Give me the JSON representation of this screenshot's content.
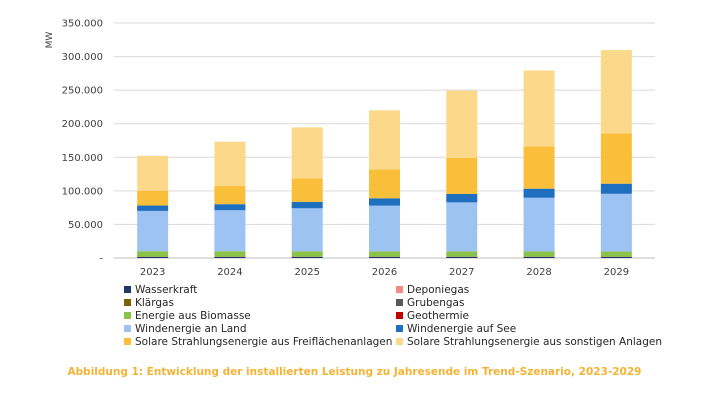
{
  "chart_data": {
    "type": "bar",
    "stacked": true,
    "categories": [
      "2023",
      "2024",
      "2025",
      "2026",
      "2027",
      "2028",
      "2029"
    ],
    "ylabel": "MW",
    "ylim": [
      0,
      350000
    ],
    "yticks": [
      0,
      50000,
      100000,
      150000,
      200000,
      250000,
      300000,
      350000
    ],
    "ytick_labels": [
      "-",
      "50.000",
      "100.000",
      "150.000",
      "200.000",
      "250.000",
      "300.000",
      "350.000"
    ],
    "grid": true,
    "legend_position": "bottom",
    "series": [
      {
        "name": "Wasserkraft",
        "color": "#1F3864",
        "values": [
          1500,
          1500,
          1500,
          1500,
          1500,
          1500,
          1500
        ]
      },
      {
        "name": "Deponiegas",
        "color": "#F28B82",
        "values": [
          200,
          200,
          200,
          200,
          200,
          200,
          200
        ]
      },
      {
        "name": "Klärgas",
        "color": "#7F6000",
        "values": [
          300,
          300,
          300,
          300,
          300,
          300,
          300
        ]
      },
      {
        "name": "Grubengas",
        "color": "#595959",
        "values": [
          100,
          100,
          100,
          100,
          100,
          100,
          100
        ]
      },
      {
        "name": "Energie aus Biomasse",
        "color": "#8BC34A",
        "values": [
          8000,
          8000,
          7900,
          7800,
          7700,
          7600,
          7500
        ]
      },
      {
        "name": "Geothermie",
        "color": "#C00000",
        "values": [
          50,
          50,
          50,
          50,
          50,
          50,
          50
        ]
      },
      {
        "name": "Windenergie an Land",
        "color": "#9DC3F2",
        "values": [
          60000,
          61000,
          64000,
          68000,
          73000,
          80000,
          86000
        ]
      },
      {
        "name": "Windenergie auf See",
        "color": "#1F6FBF",
        "values": [
          8000,
          9000,
          9500,
          11000,
          12500,
          13500,
          15000
        ]
      },
      {
        "name": "Solare Strahlungsenergie aus Freiflächenanlagen",
        "color": "#F9BE3A",
        "values": [
          22000,
          27000,
          35000,
          43000,
          54000,
          63000,
          75000
        ]
      },
      {
        "name": "Solare Strahlungsenergie aus sonstigen Anlagen",
        "color": "#FCD88A",
        "values": [
          52000,
          66000,
          76000,
          88000,
          100000,
          113000,
          124000
        ]
      }
    ]
  },
  "legend": {
    "items": [
      {
        "label": "Wasserkraft",
        "color": "#1F3864"
      },
      {
        "label": "Deponiegas",
        "color": "#F28B82"
      },
      {
        "label": "Klärgas",
        "color": "#7F6000"
      },
      {
        "label": "Grubengas",
        "color": "#595959"
      },
      {
        "label": "Energie aus Biomasse",
        "color": "#8BC34A"
      },
      {
        "label": "Geothermie",
        "color": "#C00000"
      },
      {
        "label": "Windenergie an Land",
        "color": "#9DC3F2"
      },
      {
        "label": "Windenergie auf See",
        "color": "#1F6FBF"
      },
      {
        "label": "Solare Strahlungsenergie aus Freiflächenanlagen",
        "color": "#F9BE3A"
      },
      {
        "label": "Solare Strahlungsenergie aus sonstigen Anlagen",
        "color": "#FCD88A"
      }
    ]
  },
  "caption": "Abbildung 1: Entwicklung der installierten Leistung zu Jahresende im Trend-Szenario, 2023-2029"
}
